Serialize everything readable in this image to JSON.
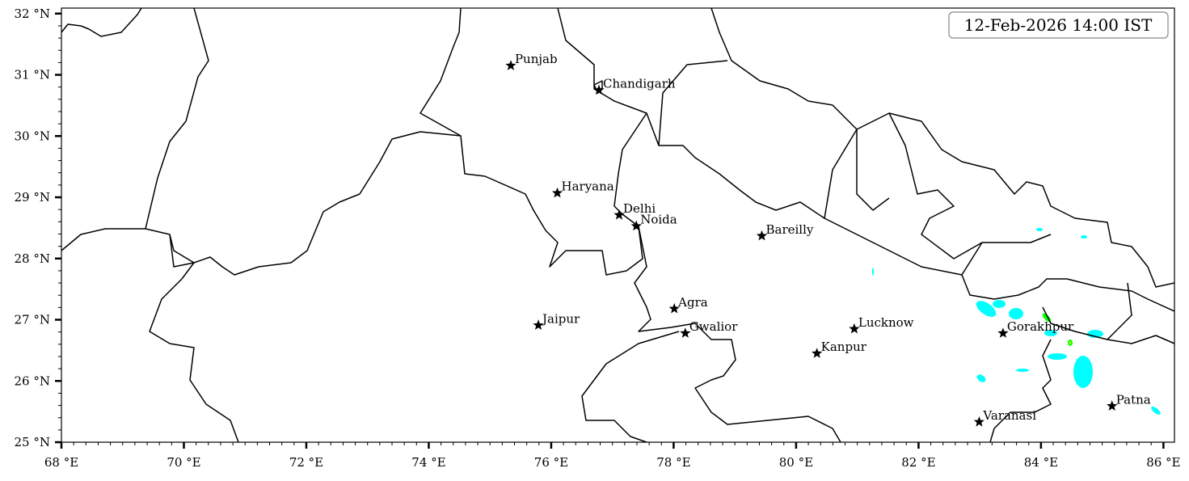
{
  "timestamp_label": "12-Feb-2026 14:00 IST",
  "map": {
    "lon_range": [
      68,
      86.18
    ],
    "lat_range": [
      25,
      32.09
    ],
    "x_ticks": [
      {
        "v": 68,
        "label": "68 °E"
      },
      {
        "v": 70,
        "label": "70 °E"
      },
      {
        "v": 72,
        "label": "72 °E"
      },
      {
        "v": 74,
        "label": "74 °E"
      },
      {
        "v": 76,
        "label": "76 °E"
      },
      {
        "v": 78,
        "label": "78 °E"
      },
      {
        "v": 80,
        "label": "80 °E"
      },
      {
        "v": 82,
        "label": "82 °E"
      },
      {
        "v": 84,
        "label": "84 °E"
      },
      {
        "v": 86,
        "label": "86 °E"
      }
    ],
    "y_ticks": [
      {
        "v": 25,
        "label": "25 °N"
      },
      {
        "v": 26,
        "label": "26 °N"
      },
      {
        "v": 27,
        "label": "27 °N"
      },
      {
        "v": 28,
        "label": "28 °N"
      },
      {
        "v": 29,
        "label": "29 °N"
      },
      {
        "v": 30,
        "label": "30 °N"
      },
      {
        "v": 31,
        "label": "31 °N"
      },
      {
        "v": 32,
        "label": "32 °N"
      }
    ],
    "minor_tick_step_deg": 0.2,
    "precip_colors": {
      "light": "#00ffff",
      "moderate": "#00ff00",
      "heavy": "#ffff00"
    },
    "marker": "star",
    "cities": [
      {
        "name": "Punjab",
        "lon": 75.34,
        "lat": 31.15
      },
      {
        "name": "Chandigarh",
        "lon": 76.78,
        "lat": 30.75
      },
      {
        "name": "Haryana",
        "lon": 76.1,
        "lat": 29.07
      },
      {
        "name": "Delhi",
        "lon": 77.11,
        "lat": 28.71
      },
      {
        "name": "Noida",
        "lon": 77.39,
        "lat": 28.53
      },
      {
        "name": "Bareilly",
        "lon": 79.44,
        "lat": 28.37
      },
      {
        "name": "Jaipur",
        "lon": 75.79,
        "lat": 26.91
      },
      {
        "name": "Agra",
        "lon": 78.01,
        "lat": 27.18
      },
      {
        "name": "Gwalior",
        "lon": 78.19,
        "lat": 26.78
      },
      {
        "name": "Lucknow",
        "lon": 80.95,
        "lat": 26.85
      },
      {
        "name": "Kanpur",
        "lon": 80.34,
        "lat": 26.45
      },
      {
        "name": "Gorakhpur",
        "lon": 83.38,
        "lat": 26.78
      },
      {
        "name": "Varanasi",
        "lon": 82.99,
        "lat": 25.33
      },
      {
        "name": "Patna",
        "lon": 85.16,
        "lat": 25.59
      }
    ]
  }
}
